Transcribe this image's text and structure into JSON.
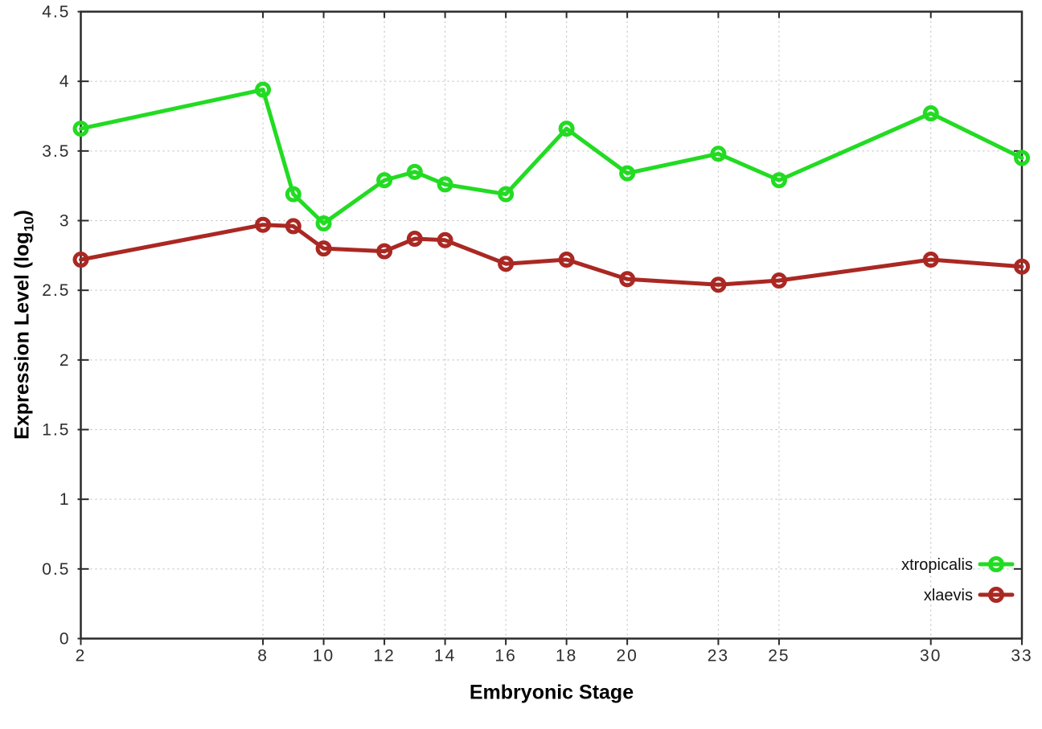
{
  "chart_data": {
    "type": "line",
    "title": "",
    "xlabel": "Embryonic Stage",
    "ylabel": "Expression Level (log10)",
    "ylabel_parts": {
      "main": "Expression Level (log",
      "sub": "10",
      "end": ")"
    },
    "xlim": [
      2,
      33
    ],
    "ylim": [
      0,
      4.5
    ],
    "grid": true,
    "legend_position": "bottom-right",
    "xticks": [
      2,
      8,
      10,
      12,
      14,
      16,
      18,
      20,
      23,
      25,
      30,
      33
    ],
    "ytick_labels": [
      "0",
      "0.5",
      "1",
      "1.5",
      "2",
      "2.5",
      "3",
      "3.5",
      "4",
      "4.5"
    ],
    "ytick_values": [
      0,
      0.5,
      1,
      1.5,
      2,
      2.5,
      3,
      3.5,
      4,
      4.5
    ],
    "x": [
      2,
      8,
      9,
      10,
      12,
      13,
      14,
      16,
      18,
      20,
      23,
      25,
      30,
      33
    ],
    "series": [
      {
        "name": "xtropicalis",
        "color": "#22db22",
        "marker": "open-circle",
        "values": [
          3.66,
          3.94,
          3.19,
          2.98,
          3.29,
          3.35,
          3.26,
          3.19,
          3.66,
          3.34,
          3.48,
          3.29,
          3.77,
          3.45
        ]
      },
      {
        "name": "xlaevis",
        "color": "#aa2823",
        "marker": "open-circle",
        "values": [
          2.72,
          2.97,
          2.96,
          2.8,
          2.78,
          2.87,
          2.86,
          2.69,
          2.72,
          2.58,
          2.54,
          2.57,
          2.72,
          2.67
        ]
      }
    ]
  },
  "style": {
    "background": "#ffffff",
    "axis_color": "#2b2b2b",
    "grid_color": "#b9b9b9",
    "tick_label_color": "#2e2e2e"
  }
}
